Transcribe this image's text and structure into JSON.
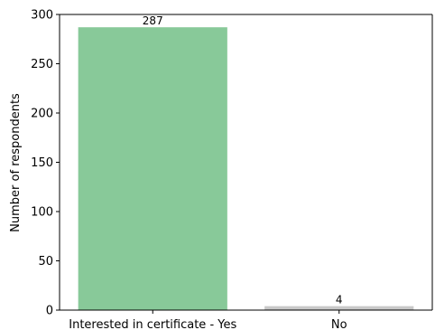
{
  "chart_data": {
    "type": "bar",
    "categories": [
      "Interested in certificate - Yes",
      "No"
    ],
    "values": [
      287,
      4
    ],
    "data_labels": [
      "287",
      "4"
    ],
    "colors": [
      "#88c999",
      "#c8c8c8"
    ],
    "xlabel": "",
    "ylabel": "Number of respondents",
    "ylim": [
      0,
      300
    ],
    "yticks": [
      0,
      50,
      100,
      150,
      200,
      250,
      300
    ],
    "ytick_labels": [
      "0",
      "50",
      "100",
      "150",
      "200",
      "250",
      "300"
    ],
    "grid": false,
    "legend": "none"
  }
}
